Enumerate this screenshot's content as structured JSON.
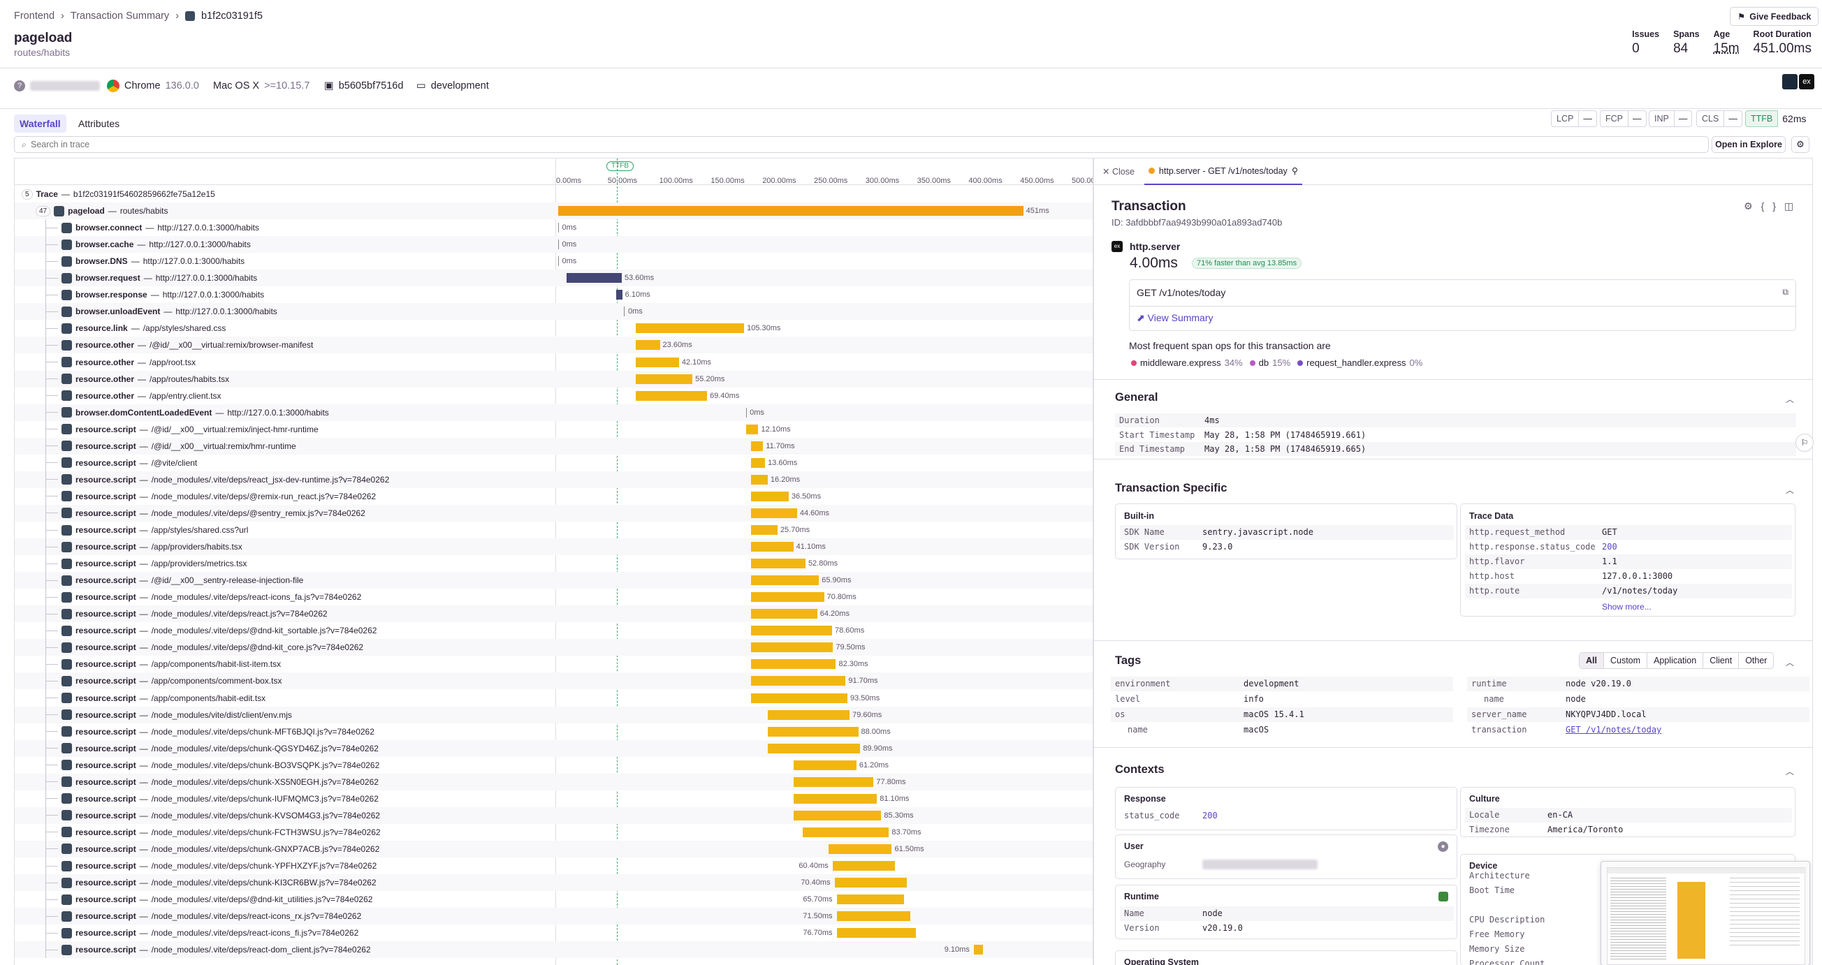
{
  "breadcrumb": [
    "Frontend",
    "Transaction Summary",
    "b1f2c03191f5"
  ],
  "title": "pageload",
  "subtitle": "routes/habits",
  "feedback": "Give Feedback",
  "stats": [
    {
      "label": "Issues",
      "value": "0"
    },
    {
      "label": "Spans",
      "value": "84"
    },
    {
      "label": "Age",
      "value": "15m"
    },
    {
      "label": "Root Duration",
      "value": "451.00ms"
    }
  ],
  "meta": {
    "browser": "Chrome",
    "browser_ver": "136.0.0",
    "os": "Mac OS X",
    "os_ver": ">=10.15.7",
    "release": "b5605bf7516d",
    "env": "development"
  },
  "tabs": [
    "Waterfall",
    "Attributes"
  ],
  "vitals": [
    {
      "label": "LCP",
      "value": "—"
    },
    {
      "label": "FCP",
      "value": "—"
    },
    {
      "label": "INP",
      "value": "—"
    },
    {
      "label": "CLS",
      "value": "—"
    },
    {
      "label": "TTFB",
      "value": "62ms"
    }
  ],
  "search_placeholder": "Search in trace",
  "open_explore": "Open in Explore",
  "timeline": {
    "ticks": [
      "0.00ms",
      "50.00ms",
      "100.00ms",
      "150.00ms",
      "200.00ms",
      "250.00ms",
      "300.00ms",
      "350.00ms",
      "400.00ms",
      "450.00ms",
      "500.00ms"
    ],
    "ttfb": "TTFB"
  },
  "trace_root": {
    "count": "5",
    "label": "Trace",
    "id": "b1f2c03191f54602859662fe75a12e15"
  },
  "root_span": {
    "count": "47",
    "op": "pageload",
    "desc": "routes/habits",
    "dur": "451ms",
    "start": 0,
    "len": 451
  },
  "spans": [
    {
      "op": "browser.connect",
      "desc": "http://127.0.0.1:3000/habits",
      "dur": "0ms",
      "start": 0,
      "len": 0
    },
    {
      "op": "browser.cache",
      "desc": "http://127.0.0.1:3000/habits",
      "dur": "0ms",
      "start": 0,
      "len": 0
    },
    {
      "op": "browser.DNS",
      "desc": "http://127.0.0.1:3000/habits",
      "dur": "0ms",
      "start": 0,
      "len": 0
    },
    {
      "op": "browser.request",
      "desc": "http://127.0.0.1:3000/habits",
      "dur": "53.60ms",
      "start": 8,
      "len": 53.6
    },
    {
      "op": "browser.response",
      "desc": "http://127.0.0.1:3000/habits",
      "dur": "6.10ms",
      "start": 56,
      "len": 6.1
    },
    {
      "op": "browser.unloadEvent",
      "desc": "http://127.0.0.1:3000/habits",
      "dur": "0ms",
      "start": 64,
      "len": 0
    },
    {
      "op": "resource.link",
      "desc": "/app/styles/shared.css",
      "dur": "105.30ms",
      "start": 75,
      "len": 105.3
    },
    {
      "op": "resource.other",
      "desc": "/@id/__x00__virtual:remix/browser-manifest",
      "dur": "23.60ms",
      "start": 75,
      "len": 23.6
    },
    {
      "op": "resource.other",
      "desc": "/app/root.tsx",
      "dur": "42.10ms",
      "start": 75,
      "len": 42.1
    },
    {
      "op": "resource.other",
      "desc": "/app/routes/habits.tsx",
      "dur": "55.20ms",
      "start": 75,
      "len": 55.2
    },
    {
      "op": "resource.other",
      "desc": "/app/entry.client.tsx",
      "dur": "69.40ms",
      "start": 75,
      "len": 69.4
    },
    {
      "op": "browser.domContentLoadedEvent",
      "desc": "http://127.0.0.1:3000/habits",
      "dur": "0ms",
      "start": 182,
      "len": 0
    },
    {
      "op": "resource.script",
      "desc": "/@id/__x00__virtual:remix/inject-hmr-runtime",
      "dur": "12.10ms",
      "start": 182,
      "len": 12.1
    },
    {
      "op": "resource.script",
      "desc": "/@id/__x00__virtual:remix/hmr-runtime",
      "dur": "11.70ms",
      "start": 187,
      "len": 11.7
    },
    {
      "op": "resource.script",
      "desc": "/@vite/client",
      "dur": "13.60ms",
      "start": 187,
      "len": 13.6
    },
    {
      "op": "resource.script",
      "desc": "/node_modules/.vite/deps/react_jsx-dev-runtime.js?v=784e0262",
      "dur": "16.20ms",
      "start": 187,
      "len": 16.2
    },
    {
      "op": "resource.script",
      "desc": "/node_modules/.vite/deps/@remix-run_react.js?v=784e0262",
      "dur": "36.50ms",
      "start": 187,
      "len": 36.5
    },
    {
      "op": "resource.script",
      "desc": "/node_modules/.vite/deps/@sentry_remix.js?v=784e0262",
      "dur": "44.60ms",
      "start": 187,
      "len": 44.6
    },
    {
      "op": "resource.script",
      "desc": "/app/styles/shared.css?url",
      "dur": "25.70ms",
      "start": 187,
      "len": 25.7
    },
    {
      "op": "resource.script",
      "desc": "/app/providers/habits.tsx",
      "dur": "41.10ms",
      "start": 187,
      "len": 41.1
    },
    {
      "op": "resource.script",
      "desc": "/app/providers/metrics.tsx",
      "dur": "52.80ms",
      "start": 187,
      "len": 52.8
    },
    {
      "op": "resource.script",
      "desc": "/@id/__x00__sentry-release-injection-file",
      "dur": "65.90ms",
      "start": 187,
      "len": 65.9
    },
    {
      "op": "resource.script",
      "desc": "/node_modules/.vite/deps/react-icons_fa.js?v=784e0262",
      "dur": "70.80ms",
      "start": 187,
      "len": 70.8
    },
    {
      "op": "resource.script",
      "desc": "/node_modules/.vite/deps/react.js?v=784e0262",
      "dur": "64.20ms",
      "start": 187,
      "len": 64.2
    },
    {
      "op": "resource.script",
      "desc": "/node_modules/.vite/deps/@dnd-kit_sortable.js?v=784e0262",
      "dur": "78.60ms",
      "start": 187,
      "len": 78.6
    },
    {
      "op": "resource.script",
      "desc": "/node_modules/.vite/deps/@dnd-kit_core.js?v=784e0262",
      "dur": "79.50ms",
      "start": 187,
      "len": 79.5
    },
    {
      "op": "resource.script",
      "desc": "/app/components/habit-list-item.tsx",
      "dur": "82.30ms",
      "start": 187,
      "len": 82.3
    },
    {
      "op": "resource.script",
      "desc": "/app/components/comment-box.tsx",
      "dur": "91.70ms",
      "start": 187,
      "len": 91.7
    },
    {
      "op": "resource.script",
      "desc": "/app/components/habit-edit.tsx",
      "dur": "93.50ms",
      "start": 187,
      "len": 93.5
    },
    {
      "op": "resource.script",
      "desc": "/node_modules/vite/dist/client/env.mjs",
      "dur": "79.60ms",
      "start": 203,
      "len": 79.6
    },
    {
      "op": "resource.script",
      "desc": "/node_modules/.vite/deps/chunk-MFT6BJQI.js?v=784e0262",
      "dur": "88.00ms",
      "start": 203,
      "len": 88
    },
    {
      "op": "resource.script",
      "desc": "/node_modules/.vite/deps/chunk-QGSYD46Z.js?v=784e0262",
      "dur": "89.90ms",
      "start": 203,
      "len": 89.9
    },
    {
      "op": "resource.script",
      "desc": "/node_modules/.vite/deps/chunk-BO3VSQPK.js?v=784e0262",
      "dur": "61.20ms",
      "start": 228,
      "len": 61.2
    },
    {
      "op": "resource.script",
      "desc": "/node_modules/.vite/deps/chunk-XS5N0EGH.js?v=784e0262",
      "dur": "77.80ms",
      "start": 228,
      "len": 77.8
    },
    {
      "op": "resource.script",
      "desc": "/node_modules/.vite/deps/chunk-IUFMQMC3.js?v=784e0262",
      "dur": "81.10ms",
      "start": 228,
      "len": 81.1
    },
    {
      "op": "resource.script",
      "desc": "/node_modules/.vite/deps/chunk-KVSOM4G3.js?v=784e0262",
      "dur": "85.30ms",
      "start": 228,
      "len": 85.3
    },
    {
      "op": "resource.script",
      "desc": "/node_modules/.vite/deps/chunk-FCTH3WSU.js?v=784e0262",
      "dur": "83.70ms",
      "start": 237,
      "len": 83.7
    },
    {
      "op": "resource.script",
      "desc": "/node_modules/.vite/deps/chunk-GNXP7ACB.js?v=784e0262",
      "dur": "61.50ms",
      "start": 262,
      "len": 61.5
    },
    {
      "op": "resource.script",
      "desc": "/node_modules/.vite/deps/chunk-YPFHXZYF.js?v=784e0262",
      "dur": "60.40ms",
      "start": 266,
      "len": 60.4,
      "left": true
    },
    {
      "op": "resource.script",
      "desc": "/node_modules/.vite/deps/chunk-KI3CR6BW.js?v=784e0262",
      "dur": "70.40ms",
      "start": 268,
      "len": 70.4,
      "left": true
    },
    {
      "op": "resource.script",
      "desc": "/node_modules/.vite/deps/@dnd-kit_utilities.js?v=784e0262",
      "dur": "65.70ms",
      "start": 270,
      "len": 65.7,
      "left": true
    },
    {
      "op": "resource.script",
      "desc": "/node_modules/.vite/deps/react-icons_rx.js?v=784e0262",
      "dur": "71.50ms",
      "start": 270,
      "len": 71.5,
      "left": true
    },
    {
      "op": "resource.script",
      "desc": "/node_modules/.vite/deps/react-icons_fi.js?v=784e0262",
      "dur": "76.70ms",
      "start": 270,
      "len": 76.7,
      "left": true
    },
    {
      "op": "resource.script",
      "desc": "/node_modules/.vite/deps/react-dom_client.js?v=784e0262",
      "dur": "9.10ms",
      "start": 403,
      "len": 9.1,
      "left": true
    }
  ],
  "panel": {
    "close": "Close",
    "tab": "http.server - GET /v1/notes/today",
    "heading": "Transaction",
    "id": "ID: 3afdbbbf7aa9493b990a01a893ad740b",
    "op": "http.server",
    "duration": "4.00ms",
    "badge": "71% faster than avg 13.85ms",
    "route": "GET /v1/notes/today",
    "view_summary": "View Summary",
    "frequent_title": "Most frequent span ops for this transaction are",
    "frequent": [
      {
        "name": "middleware.express",
        "pct": "34%",
        "color": "#e0457b"
      },
      {
        "name": "db",
        "pct": "15%",
        "color": "#b85ac7"
      },
      {
        "name": "request_handler.express",
        "pct": "0%",
        "color": "#7a4dc3"
      }
    ],
    "general_title": "General",
    "general": [
      {
        "k": "Duration",
        "v": "4ms"
      },
      {
        "k": "Start Timestamp",
        "v": "May 28, 1:58 PM (1748465919.661)"
      },
      {
        "k": "End Timestamp",
        "v": "May 28, 1:58 PM (1748465919.665)"
      }
    ],
    "ts_title": "Transaction Specific",
    "builtin_title": "Built-in",
    "builtin": [
      {
        "k": "SDK Name",
        "v": "sentry.javascript.node"
      },
      {
        "k": "SDK Version",
        "v": "9.23.0"
      }
    ],
    "tracedata_title": "Trace Data",
    "tracedata": [
      {
        "k": "http.request_method",
        "v": "GET"
      },
      {
        "k": "http.response.status_code",
        "v": "200"
      },
      {
        "k": "http.flavor",
        "v": "1.1"
      },
      {
        "k": "http.host",
        "v": "127.0.0.1:3000"
      },
      {
        "k": "http.route",
        "v": "/v1/notes/today"
      }
    ],
    "show_more": "Show more...",
    "tags_title": "Tags",
    "tag_filters": [
      "All",
      "Custom",
      "Application",
      "Client",
      "Other"
    ],
    "tags_left": [
      {
        "k": "environment",
        "v": "development"
      },
      {
        "k": "level",
        "v": "info"
      },
      {
        "k": "os",
        "v": "macOS 15.4.1"
      },
      {
        "k": "name",
        "v": "macOS"
      }
    ],
    "tags_right": [
      {
        "k": "runtime",
        "v": "node v20.19.0"
      },
      {
        "k": "name",
        "v": "node"
      },
      {
        "k": "server_name",
        "v": "NKYQPVJ4DD.local"
      },
      {
        "k": "transaction",
        "v": "GET /v1/notes/today"
      }
    ],
    "contexts_title": "Contexts",
    "response_title": "Response",
    "response": [
      {
        "k": "status_code",
        "v": "200"
      }
    ],
    "culture_title": "Culture",
    "culture": [
      {
        "k": "Locale",
        "v": "en-CA"
      },
      {
        "k": "Timezone",
        "v": "America/Toronto"
      }
    ],
    "user_title": "User",
    "user_geo": "Geography",
    "device_title": "Device",
    "device": [
      "Architecture",
      "Boot Time",
      "CPU Description",
      "Free Memory",
      "Memory Size",
      "Processor Count"
    ],
    "runtime_title": "Runtime",
    "runtime": [
      {
        "k": "Name",
        "v": "node"
      },
      {
        "k": "Version",
        "v": "v20.19.0"
      }
    ],
    "os_title": "Operating System"
  }
}
